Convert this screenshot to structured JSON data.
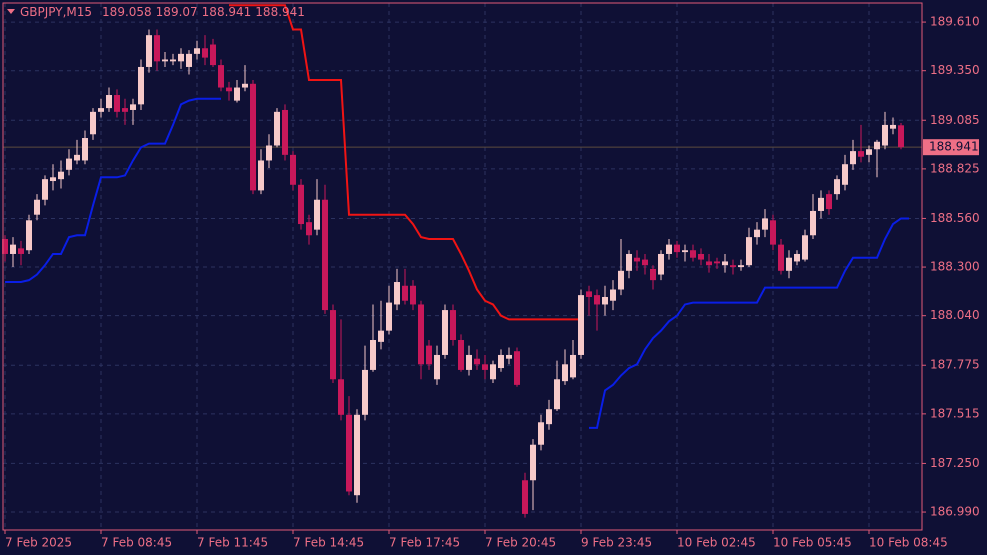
{
  "chart_data": {
    "type": "candlestick",
    "title": "GBPJPY,M15",
    "header_values": [
      189.058,
      189.07,
      188.941,
      188.941
    ],
    "current_price": 188.941,
    "ylim": [
      186.894,
      189.712
    ],
    "yticks": [
      {
        "value": 189.61,
        "label": "189.610"
      },
      {
        "value": 189.35,
        "label": "189.350"
      },
      {
        "value": 189.085,
        "label": "189.085"
      },
      {
        "value": 188.825,
        "label": "188.825"
      },
      {
        "value": 188.56,
        "label": "188.560"
      },
      {
        "value": 188.3,
        "label": "188.300"
      },
      {
        "value": 188.04,
        "label": "188.040"
      },
      {
        "value": 187.775,
        "label": "187.775"
      },
      {
        "value": 187.515,
        "label": "187.515"
      },
      {
        "value": 187.25,
        "label": "187.250"
      },
      {
        "value": 186.99,
        "label": "186.990"
      }
    ],
    "xticks": [
      {
        "value": 0,
        "label": "7 Feb 2025"
      },
      {
        "value": 12,
        "label": "7 Feb 08:45"
      },
      {
        "value": 24,
        "label": "7 Feb 11:45"
      },
      {
        "value": 36,
        "label": "7 Feb 14:45"
      },
      {
        "value": 48,
        "label": "7 Feb 17:45"
      },
      {
        "value": 60,
        "label": "7 Feb 20:45"
      },
      {
        "value": 72,
        "label": "9 Feb 23:45"
      },
      {
        "value": 84,
        "label": "10 Feb 02:45"
      },
      {
        "value": 96,
        "label": "10 Feb 05:45"
      },
      {
        "value": 108,
        "label": "10 Feb 08:45"
      }
    ],
    "grid": true,
    "up_color": "#f6c9c9",
    "down_color": "#c8185a",
    "candles": [
      [
        188.45,
        188.47,
        188.33,
        188.37
      ],
      [
        188.37,
        188.46,
        188.3,
        188.42
      ],
      [
        188.4,
        188.44,
        188.31,
        188.37
      ],
      [
        188.39,
        188.58,
        188.37,
        188.55
      ],
      [
        188.58,
        188.69,
        188.55,
        188.66
      ],
      [
        188.66,
        188.79,
        188.63,
        188.77
      ],
      [
        188.76,
        188.85,
        188.71,
        188.78
      ],
      [
        188.77,
        188.87,
        188.72,
        188.81
      ],
      [
        188.82,
        188.93,
        188.79,
        188.88
      ],
      [
        188.87,
        188.98,
        188.85,
        188.9
      ],
      [
        188.87,
        189.03,
        188.85,
        188.99
      ],
      [
        189.01,
        189.15,
        188.98,
        189.13
      ],
      [
        189.13,
        189.2,
        189.1,
        189.15
      ],
      [
        189.15,
        189.26,
        189.13,
        189.22
      ],
      [
        189.22,
        189.25,
        189.1,
        189.13
      ],
      [
        189.15,
        189.2,
        189.06,
        189.13
      ],
      [
        189.14,
        189.2,
        189.06,
        189.17
      ],
      [
        189.17,
        189.41,
        189.14,
        189.37
      ],
      [
        189.37,
        189.57,
        189.34,
        189.54
      ],
      [
        189.54,
        189.57,
        189.35,
        189.4
      ],
      [
        189.4,
        189.45,
        189.37,
        189.41
      ],
      [
        189.4,
        189.44,
        189.38,
        189.41
      ],
      [
        189.4,
        189.47,
        189.36,
        189.44
      ],
      [
        189.37,
        189.46,
        189.33,
        189.44
      ],
      [
        189.44,
        189.51,
        189.41,
        189.47
      ],
      [
        189.47,
        189.54,
        189.38,
        189.42
      ],
      [
        189.49,
        189.52,
        189.37,
        189.38
      ],
      [
        189.38,
        189.41,
        189.24,
        189.26
      ],
      [
        189.26,
        189.29,
        189.19,
        189.24
      ],
      [
        189.19,
        189.3,
        189.18,
        189.26
      ],
      [
        189.26,
        189.38,
        189.24,
        189.28
      ],
      [
        189.28,
        189.3,
        188.69,
        188.71
      ],
      [
        188.71,
        188.93,
        188.69,
        188.87
      ],
      [
        188.87,
        189.01,
        188.83,
        188.95
      ],
      [
        188.95,
        189.15,
        188.94,
        189.13
      ],
      [
        189.14,
        189.17,
        188.87,
        188.9
      ],
      [
        188.9,
        188.92,
        188.71,
        188.74
      ],
      [
        188.74,
        188.77,
        188.5,
        188.53
      ],
      [
        188.54,
        188.58,
        188.42,
        188.47
      ],
      [
        188.5,
        188.77,
        188.47,
        188.66
      ],
      [
        188.66,
        188.74,
        188.05,
        188.07
      ],
      [
        188.07,
        188.1,
        187.68,
        187.7
      ],
      [
        187.7,
        188.02,
        187.48,
        187.51
      ],
      [
        187.51,
        187.61,
        187.08,
        187.1
      ],
      [
        187.08,
        187.54,
        187.04,
        187.51
      ],
      [
        187.51,
        187.88,
        187.48,
        187.75
      ],
      [
        187.75,
        188.1,
        187.74,
        187.91
      ],
      [
        187.9,
        188.12,
        187.86,
        187.96
      ],
      [
        187.96,
        188.2,
        187.94,
        188.11
      ],
      [
        188.1,
        188.29,
        188.07,
        188.22
      ],
      [
        188.2,
        188.29,
        188.1,
        188.12
      ],
      [
        188.2,
        188.23,
        188.07,
        188.1
      ],
      [
        188.1,
        188.12,
        187.7,
        187.78
      ],
      [
        187.88,
        187.91,
        187.75,
        187.78
      ],
      [
        187.7,
        187.88,
        187.67,
        187.83
      ],
      [
        187.83,
        188.1,
        187.81,
        188.07
      ],
      [
        188.07,
        188.1,
        187.88,
        187.91
      ],
      [
        187.91,
        187.94,
        187.74,
        187.75
      ],
      [
        187.75,
        187.88,
        187.72,
        187.83
      ],
      [
        187.81,
        187.86,
        187.75,
        187.78
      ],
      [
        187.78,
        187.83,
        187.7,
        187.75
      ],
      [
        187.7,
        187.8,
        187.68,
        187.78
      ],
      [
        187.76,
        187.86,
        187.74,
        187.83
      ],
      [
        187.81,
        187.87,
        187.78,
        187.83
      ],
      [
        187.85,
        187.87,
        187.66,
        187.67
      ],
      [
        187.16,
        187.2,
        186.96,
        186.98
      ],
      [
        187.16,
        187.38,
        187.0,
        187.35
      ],
      [
        187.35,
        187.51,
        187.32,
        187.47
      ],
      [
        187.46,
        187.59,
        187.43,
        187.54
      ],
      [
        187.54,
        187.8,
        187.53,
        187.7
      ],
      [
        187.69,
        187.86,
        187.67,
        187.78
      ],
      [
        187.71,
        187.91,
        187.7,
        187.83
      ],
      [
        187.83,
        188.18,
        187.81,
        188.15
      ],
      [
        188.17,
        188.2,
        188.04,
        188.14
      ],
      [
        188.15,
        188.18,
        187.96,
        188.1
      ],
      [
        188.1,
        188.2,
        188.04,
        188.14
      ],
      [
        188.12,
        188.23,
        188.07,
        188.18
      ],
      [
        188.18,
        188.45,
        188.15,
        188.28
      ],
      [
        188.28,
        188.39,
        188.24,
        188.37
      ],
      [
        188.35,
        188.39,
        188.28,
        188.33
      ],
      [
        188.34,
        188.37,
        188.26,
        188.31
      ],
      [
        188.29,
        188.31,
        188.18,
        188.23
      ],
      [
        188.26,
        188.39,
        188.23,
        188.37
      ],
      [
        188.37,
        188.45,
        188.34,
        188.42
      ],
      [
        188.42,
        188.44,
        188.35,
        188.38
      ],
      [
        188.38,
        188.42,
        188.33,
        188.39
      ],
      [
        188.39,
        188.42,
        188.33,
        188.35
      ],
      [
        188.37,
        188.4,
        188.31,
        188.34
      ],
      [
        188.33,
        188.37,
        188.27,
        188.31
      ],
      [
        188.33,
        188.35,
        188.29,
        188.32
      ],
      [
        188.31,
        188.37,
        188.27,
        188.33
      ],
      [
        188.31,
        188.34,
        188.26,
        188.3
      ],
      [
        188.3,
        188.34,
        188.28,
        188.31
      ],
      [
        188.31,
        188.51,
        188.3,
        188.46
      ],
      [
        188.46,
        188.54,
        188.42,
        188.5
      ],
      [
        188.5,
        188.61,
        188.46,
        188.56
      ],
      [
        188.55,
        188.58,
        188.39,
        188.42
      ],
      [
        188.42,
        188.45,
        188.26,
        188.28
      ],
      [
        188.28,
        188.39,
        188.24,
        188.35
      ],
      [
        188.33,
        188.39,
        188.31,
        188.37
      ],
      [
        188.34,
        188.5,
        188.33,
        188.47
      ],
      [
        188.47,
        188.69,
        188.45,
        188.6
      ],
      [
        188.6,
        188.71,
        188.56,
        188.67
      ],
      [
        188.69,
        188.71,
        188.58,
        188.61
      ],
      [
        188.69,
        188.79,
        188.66,
        188.77
      ],
      [
        188.74,
        188.9,
        188.71,
        188.85
      ],
      [
        188.85,
        188.98,
        188.82,
        188.92
      ],
      [
        188.92,
        189.06,
        188.86,
        188.89
      ],
      [
        188.9,
        188.95,
        188.86,
        188.93
      ],
      [
        188.93,
        188.98,
        188.78,
        188.97
      ],
      [
        188.95,
        189.13,
        188.93,
        189.06
      ],
      [
        189.04,
        189.1,
        189.01,
        189.06
      ],
      [
        189.058,
        189.07,
        188.93,
        188.941
      ]
    ],
    "lines": [
      {
        "color": "#0a1ee6",
        "values": [
          188.22,
          188.22,
          188.22,
          188.23,
          188.26,
          188.31,
          188.37,
          188.37,
          188.46,
          188.47,
          188.47,
          188.63,
          188.78,
          188.78,
          188.78,
          188.79,
          188.87,
          188.94,
          188.96,
          188.96,
          188.96,
          189.06,
          189.17,
          189.19,
          189.2,
          189.2,
          189.2,
          189.2,
          null,
          null,
          null,
          null,
          null,
          null,
          null,
          null,
          null,
          null,
          null,
          null,
          null,
          null,
          null,
          null,
          null,
          null,
          null,
          null,
          null,
          null,
          null,
          null,
          null,
          null,
          null,
          null,
          null,
          null,
          null,
          null,
          null,
          null,
          null,
          null,
          null,
          null,
          null,
          null,
          null,
          null,
          null,
          null,
          null,
          187.44,
          187.44,
          187.64,
          187.67,
          187.72,
          187.76,
          187.78,
          187.86,
          187.92,
          187.96,
          188.01,
          188.04,
          188.1,
          188.11,
          188.11,
          188.11,
          188.11,
          188.11,
          188.11,
          188.11,
          188.11,
          188.11,
          188.19,
          188.19,
          188.19,
          188.19,
          188.19,
          188.19,
          188.19,
          188.19,
          188.19,
          188.19,
          188.28,
          188.35,
          188.35,
          188.35,
          188.35,
          188.45,
          188.53,
          188.56,
          188.56
        ]
      },
      {
        "color": "#f01414",
        "values": [
          null,
          null,
          null,
          null,
          null,
          null,
          null,
          null,
          null,
          null,
          null,
          null,
          null,
          null,
          null,
          null,
          null,
          null,
          null,
          null,
          null,
          null,
          null,
          null,
          null,
          null,
          null,
          null,
          189.7,
          189.7,
          189.7,
          189.7,
          189.7,
          189.7,
          189.7,
          189.7,
          189.57,
          189.57,
          189.3,
          189.3,
          189.3,
          189.3,
          189.3,
          188.58,
          188.58,
          188.58,
          188.58,
          188.58,
          188.58,
          188.58,
          188.58,
          188.53,
          188.46,
          188.45,
          188.45,
          188.45,
          188.45,
          188.37,
          188.28,
          188.18,
          188.12,
          188.1,
          188.04,
          188.02,
          188.02,
          188.02,
          188.02,
          188.02,
          188.02,
          188.02,
          188.02,
          188.02,
          188.02,
          null,
          null,
          null,
          null,
          null,
          null,
          null,
          null,
          null,
          null,
          null,
          null,
          null,
          null,
          null,
          null,
          null,
          null,
          null,
          null,
          null,
          null,
          null,
          null,
          null,
          null,
          null,
          null,
          null,
          null,
          null,
          null,
          null,
          null,
          null,
          null,
          null,
          null,
          null,
          null,
          null,
          null
        ]
      }
    ]
  }
}
